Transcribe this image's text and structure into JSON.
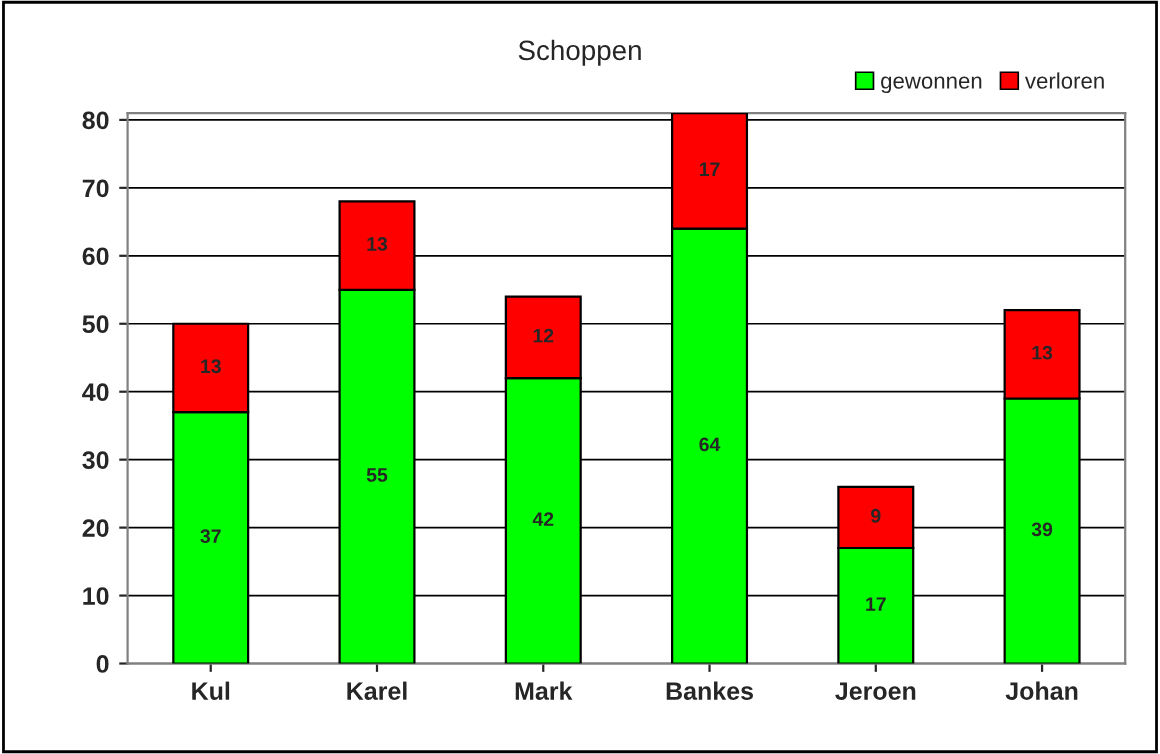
{
  "chart_data": {
    "type": "bar",
    "title": "Schoppen",
    "stacked": true,
    "data_labels": true,
    "categories": [
      "Kul",
      "Karel",
      "Mark",
      "Bankes",
      "Jeroen",
      "Johan"
    ],
    "series": [
      {
        "name": "gewonnen",
        "color": "#00ff00",
        "values": [
          37,
          55,
          42,
          64,
          17,
          39
        ]
      },
      {
        "name": "verloren",
        "color": "#ff0000",
        "values": [
          13,
          13,
          12,
          17,
          9,
          13
        ]
      }
    ],
    "ylim": [
      0,
      81
    ],
    "yticks": [
      0,
      10,
      20,
      30,
      40,
      50,
      60,
      70,
      80
    ],
    "grid": "y",
    "legend": "top right"
  }
}
